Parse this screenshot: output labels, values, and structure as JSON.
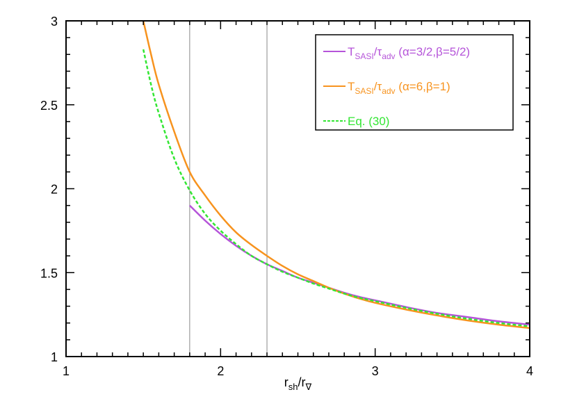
{
  "chart_data": {
    "type": "line",
    "xlim": [
      1,
      4
    ],
    "ylim": [
      1,
      3
    ],
    "x_ticks": [
      "1",
      "2",
      "3",
      "4"
    ],
    "y_ticks": [
      "1",
      "1.5",
      "2",
      "2.5",
      "3"
    ],
    "grid": false,
    "legend_position": "top-right",
    "xlabel": {
      "main": "r",
      "sub1": "sh",
      "slash": "/r",
      "sub2": "∇"
    },
    "vertical_lines": [
      1.8,
      2.3
    ],
    "series": [
      {
        "name": "T_SASI/τ_adv (α=3/2,β=5/2)",
        "legend": {
          "main": "T",
          "sub1": "SASI",
          "slash": "/τ",
          "sub2": "adv",
          "params": " (α=3/2,β=5/2)"
        },
        "color": "#b554d9",
        "dash": "solid",
        "x": [
          1.8,
          1.9,
          2.0,
          2.1,
          2.2,
          2.3,
          2.4,
          2.5,
          2.6,
          2.7,
          2.8,
          2.9,
          3.0,
          3.2,
          3.4,
          3.6,
          3.8,
          4.0
        ],
        "y": [
          1.9,
          1.81,
          1.73,
          1.66,
          1.6,
          1.55,
          1.51,
          1.47,
          1.44,
          1.41,
          1.38,
          1.355,
          1.335,
          1.295,
          1.26,
          1.235,
          1.21,
          1.19
        ]
      },
      {
        "name": "T_SASI/τ_adv (α=6,β=1)",
        "legend": {
          "main": "T",
          "sub1": "SASI",
          "slash": "/τ",
          "sub2": "adv",
          "params": " (α=6,β=1)"
        },
        "color": "#f7931e",
        "dash": "solid",
        "x": [
          1.5,
          1.55,
          1.6,
          1.7,
          1.8,
          1.9,
          2.0,
          2.1,
          2.2,
          2.3,
          2.4,
          2.5,
          2.6,
          2.7,
          2.8,
          2.9,
          3.0,
          3.2,
          3.4,
          3.6,
          3.8,
          4.0
        ],
        "y": [
          3.0,
          2.8,
          2.62,
          2.34,
          2.1,
          1.96,
          1.84,
          1.74,
          1.665,
          1.6,
          1.54,
          1.49,
          1.45,
          1.41,
          1.375,
          1.345,
          1.32,
          1.28,
          1.245,
          1.215,
          1.19,
          1.17
        ]
      },
      {
        "name": "Eq. (30)",
        "legend": {
          "main": "Eq. (30)"
        },
        "color": "#33e633",
        "dash": "dashed",
        "x": [
          1.5,
          1.55,
          1.6,
          1.7,
          1.8,
          1.9,
          2.0,
          2.1,
          2.2,
          2.3,
          2.4,
          2.5,
          2.6,
          2.7,
          2.8,
          2.9,
          3.0,
          3.2,
          3.4,
          3.6,
          3.8,
          4.0
        ],
        "y": [
          2.83,
          2.62,
          2.45,
          2.18,
          1.99,
          1.85,
          1.75,
          1.67,
          1.6,
          1.55,
          1.505,
          1.47,
          1.435,
          1.405,
          1.375,
          1.35,
          1.33,
          1.29,
          1.255,
          1.225,
          1.2,
          1.18
        ]
      }
    ]
  }
}
